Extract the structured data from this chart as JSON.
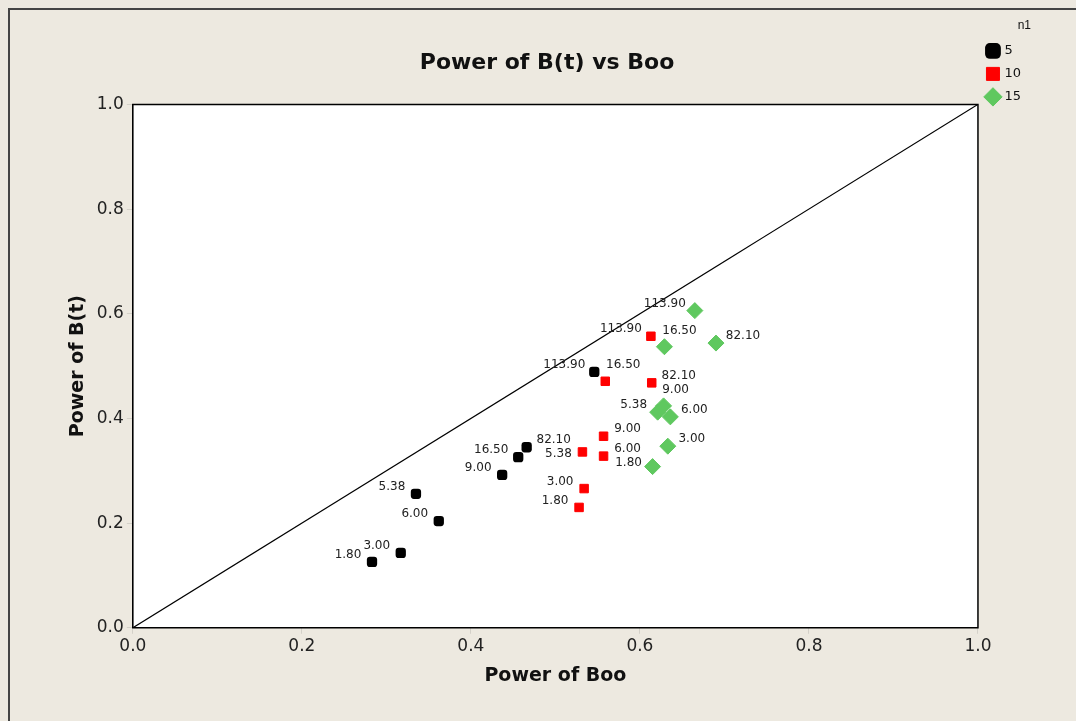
{
  "chart_data": {
    "type": "scatter",
    "title": "Power of B(t) vs Boo",
    "xlabel": "Power of Boo",
    "ylabel": "Power of B(t)",
    "legend_title": "n1",
    "legend": "top right",
    "grid": false,
    "xlim": [
      0,
      1
    ],
    "ylim": [
      0,
      1
    ],
    "xticks": [
      {
        "value": 0,
        "label": "0.0"
      },
      {
        "value": 0.2,
        "label": "0.2"
      },
      {
        "value": 0.4,
        "label": "0.4"
      },
      {
        "value": 0.6,
        "label": "0.6"
      },
      {
        "value": 0.8,
        "label": "0.8"
      },
      {
        "value": 1,
        "label": "1.0"
      }
    ],
    "yticks": [
      {
        "value": 0,
        "label": "0.0"
      },
      {
        "value": 0.2,
        "label": "0.2"
      },
      {
        "value": 0.4,
        "label": "0.4"
      },
      {
        "value": 0.6,
        "label": "0.6"
      },
      {
        "value": 0.8,
        "label": "0.8"
      },
      {
        "value": 1,
        "label": "1.0"
      }
    ],
    "series": [
      {
        "name": "5",
        "color": "#000000",
        "marker": "cross",
        "x": [
          0.283,
          0.317,
          0.335,
          0.362,
          0.437,
          0.456,
          0.466,
          0.546
        ],
        "values": [
          0.126,
          0.143,
          0.256,
          0.204,
          0.292,
          0.326,
          0.345,
          0.489
        ]
      },
      {
        "name": "10",
        "color": "#ff0000",
        "marker": "square",
        "x": [
          0.528,
          0.534,
          0.532,
          0.557,
          0.557,
          0.559,
          0.614,
          0.613
        ],
        "values": [
          0.23,
          0.266,
          0.336,
          0.328,
          0.366,
          0.471,
          0.468,
          0.557
        ]
      },
      {
        "name": "15",
        "color": "#5fc85f",
        "marker": "diamond",
        "x": [
          0.615,
          0.633,
          0.621,
          0.636,
          0.628,
          0.629,
          0.69,
          0.665
        ],
        "values": [
          0.308,
          0.347,
          0.412,
          0.403,
          0.424,
          0.537,
          0.544,
          0.606
        ]
      },
      {
        "type": "line",
        "color": "#000000",
        "marker": "none",
        "line_style": "solid",
        "x": [
          0,
          1
        ],
        "values": [
          0,
          1
        ]
      }
    ],
    "annotations": [
      {
        "text": "1.80",
        "x": 0.283,
        "y": 0.126
      },
      {
        "text": "3.00",
        "x": 0.317,
        "y": 0.143
      },
      {
        "text": "5.38",
        "x": 0.335,
        "y": 0.256
      },
      {
        "text": "6.00",
        "x": 0.362,
        "y": 0.204
      },
      {
        "text": "9.00",
        "x": 0.437,
        "y": 0.292
      },
      {
        "text": "16.50",
        "x": 0.456,
        "y": 0.326
      },
      {
        "text": "82.10",
        "x": 0.466,
        "y": 0.345
      },
      {
        "text": "113.90",
        "x": 0.546,
        "y": 0.489
      },
      {
        "text": "1.80",
        "x": 0.528,
        "y": 0.23
      },
      {
        "text": "3.00",
        "x": 0.534,
        "y": 0.266
      },
      {
        "text": "5.38",
        "x": 0.532,
        "y": 0.336
      },
      {
        "text": "6.00",
        "x": 0.557,
        "y": 0.328
      },
      {
        "text": "9.00",
        "x": 0.557,
        "y": 0.366
      },
      {
        "text": "16.50",
        "x": 0.559,
        "y": 0.471
      },
      {
        "text": "82.10",
        "x": 0.614,
        "y": 0.468
      },
      {
        "text": "113.90",
        "x": 0.613,
        "y": 0.557
      },
      {
        "text": "1.80",
        "x": 0.615,
        "y": 0.308
      },
      {
        "text": "3.00",
        "x": 0.633,
        "y": 0.347
      },
      {
        "text": "5.38",
        "x": 0.621,
        "y": 0.412
      },
      {
        "text": "6.00",
        "x": 0.636,
        "y": 0.403
      },
      {
        "text": "9.00",
        "x": 0.628,
        "y": 0.424
      },
      {
        "text": "16.50",
        "x": 0.629,
        "y": 0.537
      },
      {
        "text": "82.10",
        "x": 0.69,
        "y": 0.544
      },
      {
        "text": "113.90",
        "x": 0.665,
        "y": 0.606
      }
    ]
  }
}
